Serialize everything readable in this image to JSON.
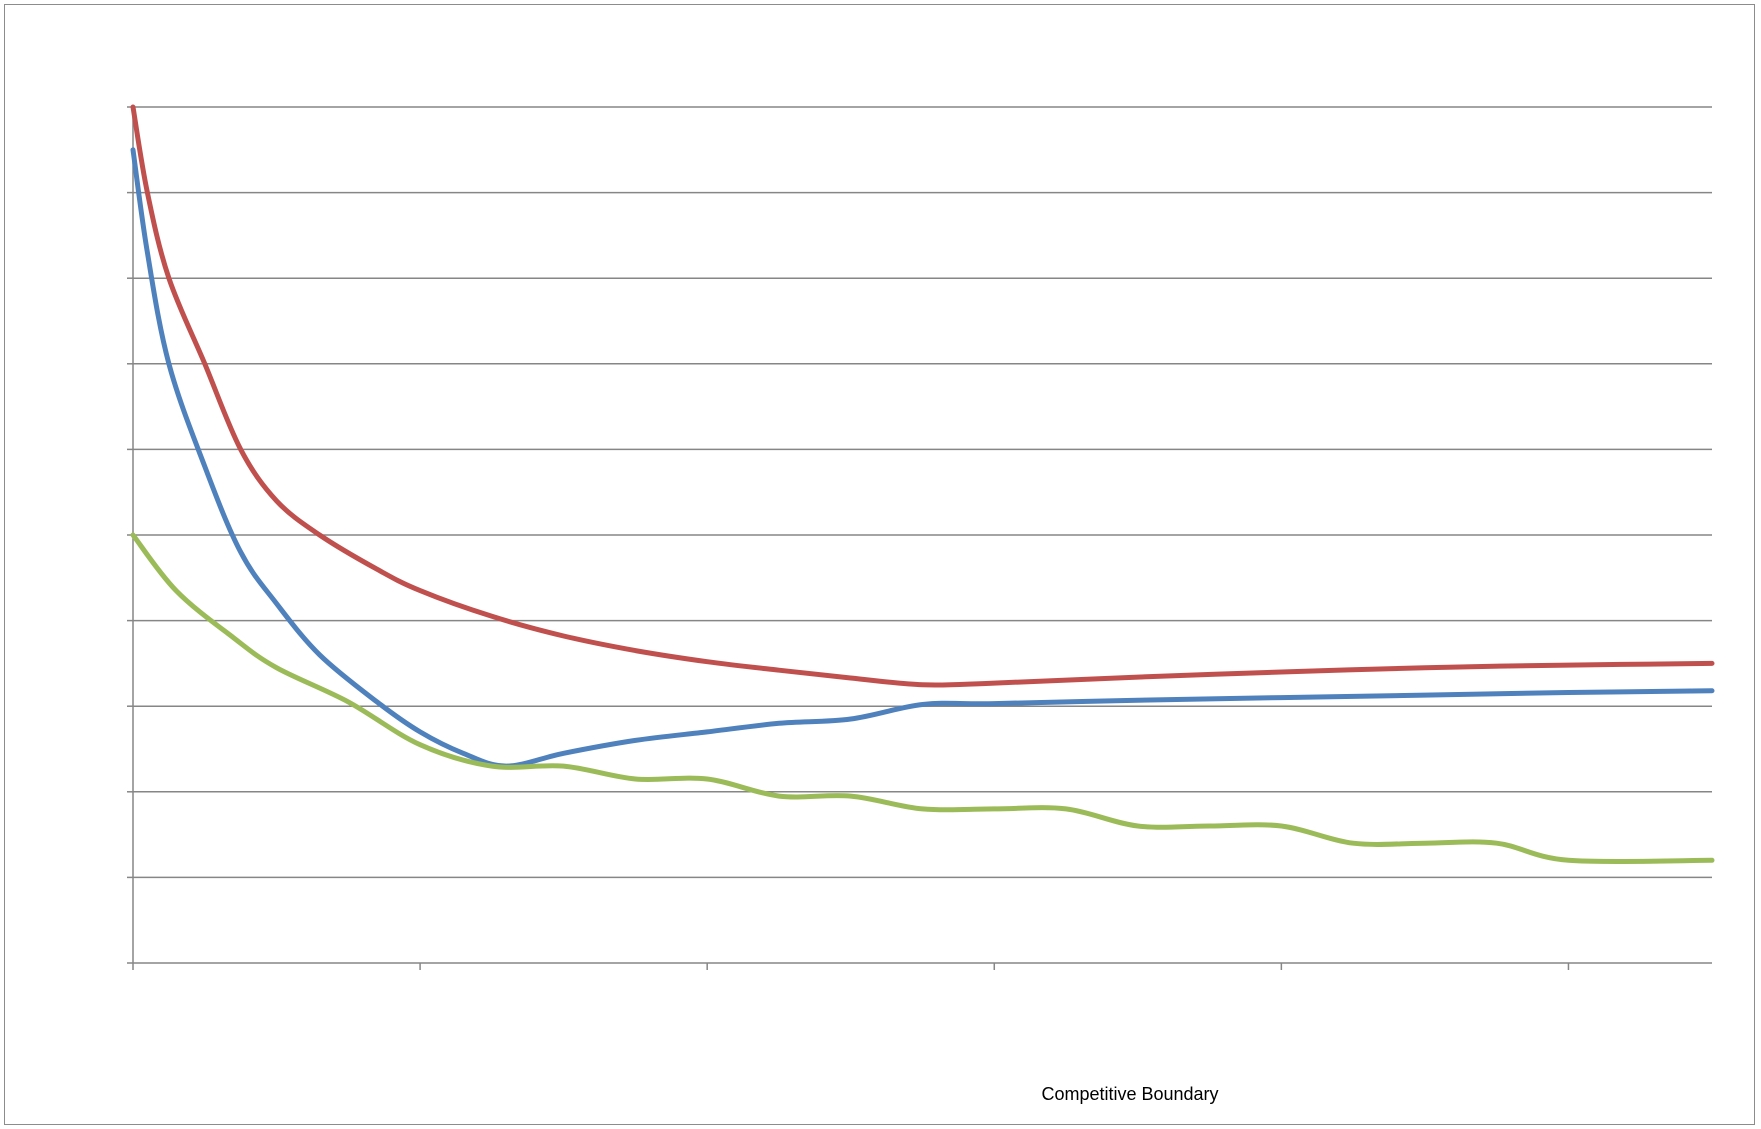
{
  "chart_data": {
    "type": "line",
    "xlabel": "Competitive Boundary",
    "ylabel": "",
    "title": "",
    "xlim": [
      0,
      11
    ],
    "ylim": [
      0,
      10
    ],
    "x_ticks": [
      0,
      2,
      4,
      6,
      8,
      10
    ],
    "y_ticks": [
      0,
      1,
      2,
      3,
      4,
      5,
      6,
      7,
      8,
      9,
      10
    ],
    "grid": true,
    "legend": "none",
    "series": [
      {
        "color": "#c0504d",
        "points": [
          [
            0,
            10
          ],
          [
            0.1,
            9
          ],
          [
            0.25,
            8
          ],
          [
            0.5,
            7
          ],
          [
            0.75,
            6
          ],
          [
            1.0,
            5.4
          ],
          [
            1.3,
            5
          ],
          [
            1.7,
            4.6
          ],
          [
            2.0,
            4.35
          ],
          [
            2.5,
            4.05
          ],
          [
            3.0,
            3.82
          ],
          [
            3.5,
            3.65
          ],
          [
            4.0,
            3.52
          ],
          [
            4.5,
            3.42
          ],
          [
            5.0,
            3.33
          ],
          [
            5.5,
            3.25
          ],
          [
            6.0,
            3.27
          ],
          [
            7.0,
            3.34
          ],
          [
            8.0,
            3.4
          ],
          [
            9.0,
            3.45
          ],
          [
            10.0,
            3.48
          ],
          [
            11.0,
            3.5
          ]
        ]
      },
      {
        "color": "#4f81bd",
        "points": [
          [
            0,
            9.5
          ],
          [
            0.1,
            8.3
          ],
          [
            0.25,
            7
          ],
          [
            0.5,
            5.8
          ],
          [
            0.75,
            4.8
          ],
          [
            1.0,
            4.2
          ],
          [
            1.3,
            3.6
          ],
          [
            1.7,
            3.05
          ],
          [
            2.0,
            2.7
          ],
          [
            2.3,
            2.45
          ],
          [
            2.6,
            2.3
          ],
          [
            3.0,
            2.45
          ],
          [
            3.5,
            2.6
          ],
          [
            4.0,
            2.7
          ],
          [
            4.5,
            2.8
          ],
          [
            5.0,
            2.85
          ],
          [
            5.5,
            3.02
          ],
          [
            6.0,
            3.03
          ],
          [
            7.0,
            3.07
          ],
          [
            8.0,
            3.1
          ],
          [
            9.0,
            3.13
          ],
          [
            10.0,
            3.16
          ],
          [
            11.0,
            3.18
          ]
        ]
      },
      {
        "color": "#9bbb59",
        "points": [
          [
            0,
            5.0
          ],
          [
            0.3,
            4.35
          ],
          [
            0.7,
            3.8
          ],
          [
            1.0,
            3.45
          ],
          [
            1.5,
            3.05
          ],
          [
            2.0,
            2.55
          ],
          [
            2.5,
            2.3
          ],
          [
            3.0,
            2.3
          ],
          [
            3.5,
            2.15
          ],
          [
            4.0,
            2.15
          ],
          [
            4.5,
            1.95
          ],
          [
            5.0,
            1.95
          ],
          [
            5.5,
            1.8
          ],
          [
            6.0,
            1.8
          ],
          [
            6.5,
            1.8
          ],
          [
            7.0,
            1.6
          ],
          [
            7.5,
            1.6
          ],
          [
            8.0,
            1.6
          ],
          [
            8.5,
            1.4
          ],
          [
            9.0,
            1.4
          ],
          [
            9.5,
            1.4
          ],
          [
            10.0,
            1.2
          ],
          [
            11.0,
            1.2
          ]
        ]
      }
    ]
  },
  "colors": {
    "gridline": "#868686",
    "axis": "#868686",
    "frame": "#8c8c8c"
  }
}
